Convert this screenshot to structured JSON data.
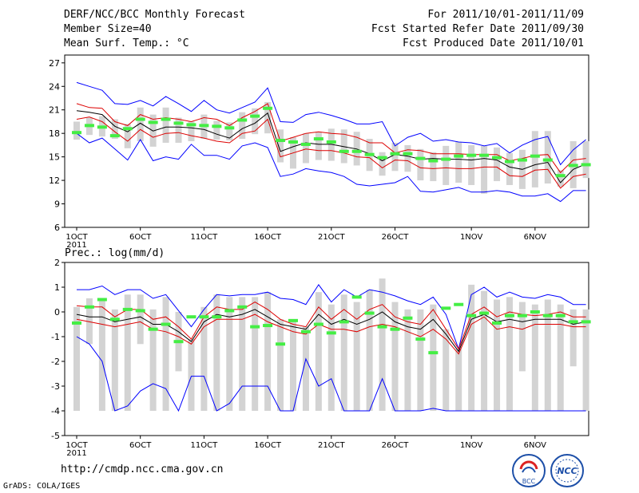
{
  "header": {
    "title": "DERF/NCC/BCC Monthly Forecast",
    "member": "Member Size=40",
    "variable": "Mean Surf. Temp.: °C",
    "period": "For 2011/10/01-2011/11/09",
    "started": "Fcst Started Refer Date 2011/09/30",
    "produced": "Fcst Produced Date 2011/10/01"
  },
  "footer": {
    "url": "http://cmdp.ncc.cma.gov.cn",
    "credit": "GrADS: COLA/IGES"
  },
  "logos": {
    "bcc": "BCC",
    "ncc": "NCC"
  },
  "colors": {
    "max": "#0000ff",
    "spread": "#dd0000",
    "mean": "#000000",
    "box": "#d3d3d3",
    "obs": "#44ee44"
  },
  "chart_data": [
    {
      "type": "ensemble",
      "title": "",
      "ylabel": "Mean Surf. Temp.: °C",
      "ylim": [
        6,
        28
      ],
      "yticks": [
        6,
        9,
        12,
        15,
        18,
        21,
        24,
        27
      ],
      "xticks": [
        {
          "day": 0,
          "label": "1OCT",
          "sub": "2011"
        },
        {
          "day": 5,
          "label": "6OCT"
        },
        {
          "day": 10,
          "label": "11OCT"
        },
        {
          "day": 15,
          "label": "16OCT"
        },
        {
          "day": 20,
          "label": "21OCT"
        },
        {
          "day": 25,
          "label": "26OCT"
        },
        {
          "day": 31,
          "label": "1NOV"
        },
        {
          "day": 36,
          "label": "6NOV"
        }
      ],
      "series": [
        {
          "name": "max",
          "values": [
            24.5,
            24,
            23.5,
            21.8,
            21.7,
            22.2,
            21.5,
            22.7,
            21.8,
            20.8,
            22.2,
            21,
            20.6,
            21.3,
            22,
            23.8,
            19.5,
            19.4,
            20.4,
            20.7,
            20.3,
            19.8,
            19.2,
            19.2,
            19.5,
            16.4,
            17.5,
            18,
            17,
            17.2,
            16.9,
            16.8,
            16.4,
            16.7,
            15.5,
            16.5,
            17.2,
            17.6,
            14,
            15.9,
            17.2
          ]
        },
        {
          "name": "upper",
          "values": [
            21.8,
            21.3,
            21.2,
            19.5,
            19,
            20.4,
            19.8,
            20,
            19.8,
            19.5,
            20,
            19.8,
            19,
            20,
            20.8,
            21.8,
            17,
            17.5,
            18,
            18.2,
            18,
            17.9,
            17.5,
            16.8,
            16.8,
            15.5,
            15.9,
            15.8,
            15.4,
            15.4,
            15.4,
            15.3,
            15.3,
            15.3,
            14.5,
            14.8,
            15.2,
            15.3,
            13,
            14.6,
            14.8
          ]
        },
        {
          "name": "mean",
          "values": [
            20.9,
            20.7,
            20.4,
            18.9,
            18.2,
            19.3,
            18.3,
            18.8,
            18.8,
            18.7,
            18.5,
            17.9,
            17.4,
            18.6,
            19.3,
            20.6,
            15.7,
            16.3,
            16.8,
            16.6,
            16.6,
            16.3,
            16,
            15.4,
            14.5,
            15.3,
            15.1,
            14.7,
            14.8,
            14.7,
            14.7,
            14.6,
            14.8,
            14.6,
            13.7,
            13.4,
            14.0,
            14.3,
            11.7,
            13.4,
            14.1
          ]
        },
        {
          "name": "lower",
          "values": [
            19.8,
            20.1,
            19.5,
            18.2,
            17,
            18.5,
            17.5,
            18,
            18.1,
            17.7,
            17.4,
            17,
            16.8,
            18,
            18.3,
            19.8,
            15,
            15.5,
            16,
            15.8,
            15.8,
            15.5,
            15,
            14.9,
            13.6,
            14.6,
            14.5,
            13.6,
            13.5,
            13.6,
            13.5,
            13.5,
            13.7,
            13.7,
            12.6,
            12.5,
            13.3,
            13.4,
            11,
            12.5,
            12.8
          ]
        },
        {
          "name": "min",
          "values": [
            18,
            16.8,
            17.4,
            16,
            14.6,
            17.2,
            14.5,
            15,
            14.7,
            16.6,
            15.2,
            15.2,
            14.7,
            16.4,
            16.8,
            16.2,
            12.5,
            12.8,
            13.5,
            13.2,
            13,
            12.5,
            11.5,
            11.3,
            11.5,
            11.7,
            12.5,
            10.6,
            10.5,
            10.8,
            11.1,
            10.5,
            10.5,
            10.7,
            10.5,
            10,
            10,
            10.3,
            9.3,
            10.7,
            10.7
          ]
        }
      ],
      "boxes": [
        [
          17.2,
          19.5
        ],
        [
          17.8,
          20
        ],
        [
          17.6,
          20.2
        ],
        [
          17.3,
          19.8
        ],
        [
          16.1,
          19.2
        ],
        [
          17,
          21.3
        ],
        [
          16.3,
          20.4
        ],
        [
          16.8,
          21.3
        ],
        [
          16.8,
          20
        ],
        [
          17,
          19.5
        ],
        [
          17.3,
          20.4
        ],
        [
          17.2,
          19.6
        ],
        [
          17.1,
          19.4
        ],
        [
          17.3,
          20.7
        ],
        [
          17.9,
          21.2
        ],
        [
          18,
          22
        ],
        [
          14.3,
          18.5
        ],
        [
          13.5,
          17.5
        ],
        [
          14.2,
          18
        ],
        [
          14.6,
          18.2
        ],
        [
          14.5,
          18.6
        ],
        [
          14.2,
          18.5
        ],
        [
          13.9,
          18.2
        ],
        [
          13.2,
          17.3
        ],
        [
          12.6,
          15.6
        ],
        [
          13.2,
          16.8
        ],
        [
          13.1,
          16.5
        ],
        [
          12,
          16
        ],
        [
          11.9,
          15.6
        ],
        [
          11.4,
          16.4
        ],
        [
          11.7,
          16.9
        ],
        [
          11.4,
          16.5
        ],
        [
          10.3,
          16.4
        ],
        [
          11.9,
          16.2
        ],
        [
          11.4,
          15.5
        ],
        [
          10.9,
          15.9
        ],
        [
          11.1,
          18.3
        ],
        [
          11.6,
          18.3
        ],
        [
          11.2,
          13.3
        ],
        [
          11,
          17
        ],
        [
          12.3,
          17
        ]
      ],
      "obs": [
        18.1,
        19,
        18.8,
        17.7,
        18.6,
        19.8,
        19.4,
        19.8,
        19.3,
        19.1,
        19,
        18.9,
        18.7,
        19.7,
        20.2,
        21.2,
        17.1,
        16.9,
        16.6,
        17.3,
        16.9,
        15.7,
        15.7,
        15.3,
        14.9,
        15.4,
        15.4,
        14.8,
        14.5,
        14.7,
        15.1,
        15.2,
        15.2,
        14.9,
        14.4,
        14.6,
        15.1,
        14.6,
        12.6,
        13.9,
        14
      ]
    },
    {
      "type": "ensemble",
      "title": "Prec.: log(mm/d)",
      "ylabel": "Prec.: log(mm/d)",
      "ylim": [
        -5,
        2
      ],
      "yticks": [
        -5,
        -4,
        -3,
        -2,
        -1,
        0,
        1,
        2
      ],
      "xticks": [
        {
          "day": 0,
          "label": "1OCT",
          "sub": "2011"
        },
        {
          "day": 5,
          "label": "6OCT"
        },
        {
          "day": 10,
          "label": "11OCT"
        },
        {
          "day": 15,
          "label": "16OCT"
        },
        {
          "day": 20,
          "label": "21OCT"
        },
        {
          "day": 25,
          "label": "26OCT"
        },
        {
          "day": 31,
          "label": "1NOV"
        },
        {
          "day": 36,
          "label": "6NOV"
        }
      ],
      "series": [
        {
          "name": "max",
          "values": [
            0.9,
            0.9,
            1.05,
            0.7,
            0.9,
            0.9,
            0.55,
            0.7,
            0.05,
            -0.6,
            0.1,
            0.7,
            0.65,
            0.7,
            0.7,
            0.8,
            0.55,
            0.5,
            0.3,
            1.1,
            0.4,
            0.9,
            0.6,
            0.9,
            0.8,
            0.65,
            0.45,
            0.3,
            0.6,
            -0.1,
            -1.5,
            0.7,
            1,
            0.6,
            0.8,
            0.6,
            0.55,
            0.7,
            0.6,
            0.3,
            0.3
          ]
        },
        {
          "name": "upper",
          "values": [
            0.25,
            0.2,
            0.2,
            -0.2,
            0.1,
            0.1,
            -0.3,
            -0.2,
            -0.6,
            -1.1,
            -0.2,
            0.2,
            0.1,
            0.1,
            0.4,
            0.1,
            -0.3,
            -0.5,
            -0.6,
            0.2,
            -0.3,
            0.1,
            -0.3,
            0.1,
            0.3,
            -0.2,
            -0.4,
            -0.5,
            0.1,
            -0.7,
            -1.5,
            -0.1,
            0.2,
            -0.2,
            0,
            -0.1,
            -0.15,
            -0.1,
            0,
            -0.2,
            -0.2
          ]
        },
        {
          "name": "mean",
          "values": [
            -0.1,
            -0.2,
            -0.2,
            -0.4,
            -0.3,
            -0.2,
            -0.5,
            -0.5,
            -0.8,
            -1.2,
            -0.4,
            -0.1,
            -0.2,
            -0.1,
            0.1,
            -0.2,
            -0.5,
            -0.6,
            -0.7,
            -0.1,
            -0.5,
            -0.3,
            -0.5,
            -0.3,
            0,
            -0.4,
            -0.6,
            -0.7,
            -0.3,
            -0.9,
            -1.6,
            -0.3,
            -0.1,
            -0.4,
            -0.3,
            -0.4,
            -0.3,
            -0.3,
            -0.3,
            -0.5,
            -0.4
          ]
        },
        {
          "name": "lower",
          "values": [
            -0.3,
            -0.4,
            -0.5,
            -0.6,
            -0.5,
            -0.4,
            -0.7,
            -0.8,
            -1.0,
            -1.3,
            -0.6,
            -0.3,
            -0.3,
            -0.3,
            -0.1,
            -0.4,
            -0.6,
            -0.8,
            -0.9,
            -0.5,
            -0.7,
            -0.7,
            -0.8,
            -0.6,
            -0.5,
            -0.6,
            -0.8,
            -1.0,
            -0.7,
            -1.1,
            -1.7,
            -0.5,
            -0.2,
            -0.7,
            -0.6,
            -0.7,
            -0.5,
            -0.5,
            -0.5,
            -0.6,
            -0.6
          ]
        },
        {
          "name": "min",
          "values": [
            -1.0,
            -1.3,
            -2,
            -4,
            -3.8,
            -3.2,
            -2.9,
            -3.1,
            -4,
            -2.6,
            -2.6,
            -4,
            -3.7,
            -3,
            -3,
            -3,
            -4,
            -4,
            -1.9,
            -3,
            -2.7,
            -4,
            -4,
            -4,
            -2.7,
            -4,
            -4,
            -4,
            -3.9,
            -4,
            -4,
            -4,
            -4,
            -4,
            -4,
            -4,
            -4,
            -4,
            -4,
            -4,
            -4
          ]
        }
      ],
      "boxes": [
        [
          -4,
          0.2
        ],
        [
          -1.3,
          0.55
        ],
        [
          -4,
          0.5
        ],
        [
          -4,
          0.1
        ],
        [
          -4,
          0.7
        ],
        [
          -1.3,
          0.7
        ],
        [
          -4,
          0.1
        ],
        [
          -4,
          0.6
        ],
        [
          -2.4,
          0
        ],
        [
          -4,
          -1.1
        ],
        [
          -4,
          0.2
        ],
        [
          -4,
          0.7
        ],
        [
          -4,
          0.6
        ],
        [
          -4,
          0.6
        ],
        [
          -4,
          0.6
        ],
        [
          -4,
          0.8
        ],
        [
          -4,
          -0.3
        ],
        [
          -4,
          -0.3
        ],
        [
          -4,
          -0.6
        ],
        [
          -4,
          0.8
        ],
        [
          -4,
          0.3
        ],
        [
          -4,
          0.7
        ],
        [
          -4,
          0.4
        ],
        [
          -4,
          0.9
        ],
        [
          -4,
          1.35
        ],
        [
          -4,
          0.4
        ],
        [
          -4,
          0.1
        ],
        [
          -4,
          0.1
        ],
        [
          -4,
          0.3
        ],
        [
          -4,
          -0.7
        ],
        [
          -4,
          -1.5
        ],
        [
          -4,
          1.1
        ],
        [
          -4,
          0.85
        ],
        [
          -4,
          0.5
        ],
        [
          -4,
          0.6
        ],
        [
          -2.4,
          0.4
        ],
        [
          -4,
          0.3
        ],
        [
          -4,
          0.5
        ],
        [
          -4,
          0.3
        ],
        [
          -2.2,
          0.1
        ],
        [
          -4,
          0.1
        ]
      ],
      "obs": [
        -0.45,
        0.2,
        0.5,
        -0.3,
        0.1,
        0.05,
        -0.7,
        -0.5,
        -1.2,
        -0.2,
        -0.2,
        -0.2,
        0.05,
        0.2,
        -0.6,
        -0.55,
        -1.3,
        -0.35,
        -0.8,
        -0.5,
        -0.85,
        -0.4,
        0.6,
        -0.05,
        -0.6,
        -0.7,
        -0.25,
        -1.1,
        -1.65,
        0.15,
        0.3,
        -0.15,
        -0.05,
        -0.45,
        -0.15,
        -0.15,
        0.0,
        -0.15,
        -0.15,
        -0.4,
        -0.4
      ]
    }
  ]
}
